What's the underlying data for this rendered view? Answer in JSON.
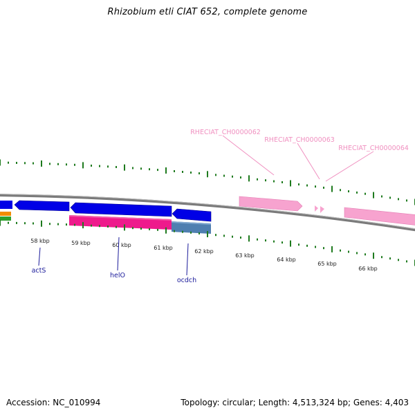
{
  "title": "Rhizobium etli CIAT 652, complete genome",
  "accession": "Accession: NC_010994",
  "summary": "Topology: circular; Length: 4,513,324 bp; Genes: 4,403",
  "ticks": [
    "58 kbp",
    "59 kbp",
    "60 kbp",
    "61 kbp",
    "62 kbp",
    "63 kbp",
    "64 kbp",
    "65 kbp",
    "66 kbp"
  ],
  "gene_labels": [
    "actS",
    "helO",
    "ocdch"
  ],
  "pseudo_labels": [
    "RHECIAT_CH0000062",
    "RHECIAT_CH0000063",
    "RHECIAT_CH0000064"
  ],
  "colors": {
    "backbone": "#808080",
    "tick_green": "#1e7a1e",
    "gene_blue": "#0000e6",
    "magenta": "#ee1a8c",
    "steel": "#4f7fb0",
    "pink": "#f7a3cf",
    "orange": "#f08c00",
    "green_feature": "#2ca02c",
    "label_blue": "#1a1a9a",
    "label_pink": "#f090c0"
  }
}
